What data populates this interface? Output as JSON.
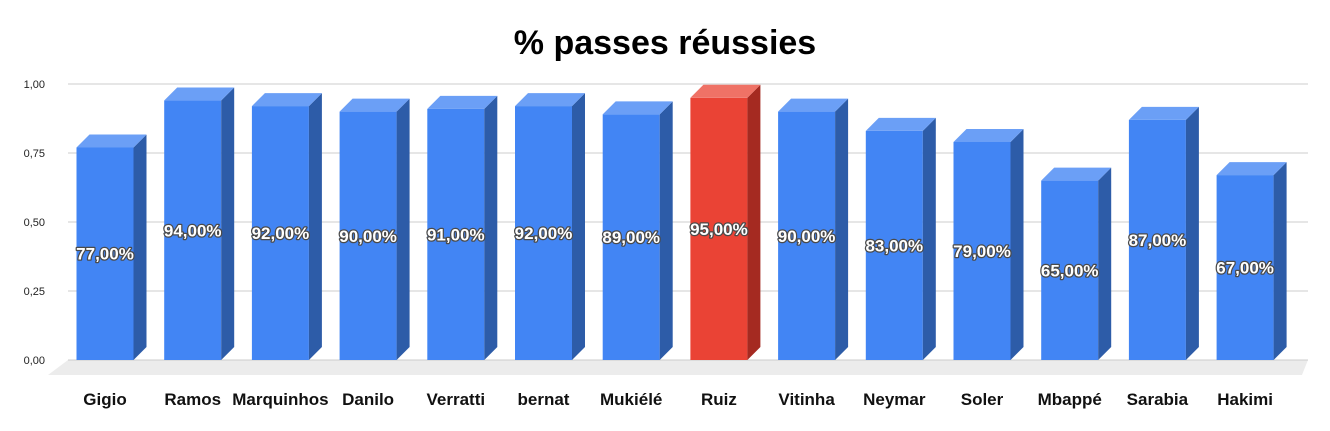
{
  "chart_data": {
    "type": "bar",
    "title": "% passes réussies",
    "xlabel": "",
    "ylabel": "",
    "ylim": [
      0,
      1
    ],
    "yticks": [
      0,
      0.25,
      0.5,
      0.75,
      1
    ],
    "ytick_labels": [
      "0,00",
      "0,25",
      "0,50",
      "0,75",
      "1,00"
    ],
    "grid": true,
    "legend": "none",
    "categories": [
      "Gigio",
      "Ramos",
      "Marquinhos",
      "Danilo",
      "Verratti",
      "bernat",
      "Mukiélé",
      "Ruiz",
      "Vitinha",
      "Neymar",
      "Soler",
      "Mbappé",
      "Sarabia",
      "Hakimi"
    ],
    "values": [
      0.77,
      0.94,
      0.92,
      0.9,
      0.91,
      0.92,
      0.89,
      0.95,
      0.9,
      0.83,
      0.79,
      0.65,
      0.87,
      0.67
    ],
    "data_labels": [
      "77,00%",
      "94,00%",
      "92,00%",
      "90,00%",
      "91,00%",
      "92,00%",
      "89,00%",
      "95,00%",
      "90,00%",
      "83,00%",
      "79,00%",
      "65,00%",
      "87,00%",
      "67,00%"
    ],
    "highlight_index": 7,
    "colors": {
      "bar": "#4285f4",
      "bar_side": "#2d5ca8",
      "bar_top": "#6b9ff6",
      "highlight": "#ea4335",
      "highlight_side": "#a52a21",
      "highlight_top": "#ef7266",
      "floor": "#ececec",
      "grid": "#cccccc"
    }
  }
}
